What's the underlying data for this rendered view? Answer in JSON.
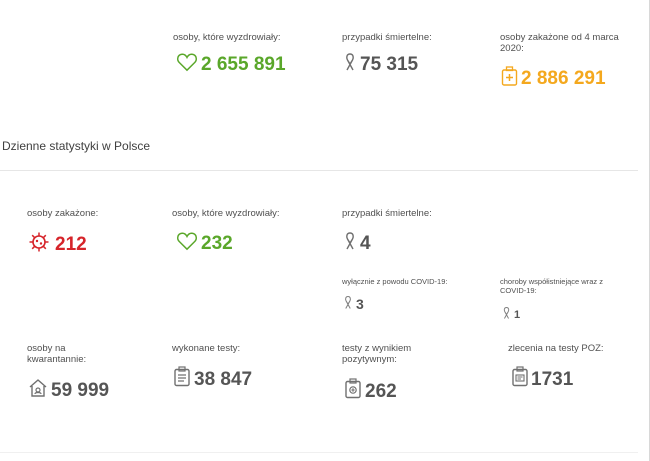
{
  "top": {
    "recovered": {
      "label": "osoby, które wyzdrowiały:",
      "value": "2 655 891",
      "icon": "heart-icon"
    },
    "deaths": {
      "label": "przypadki śmiertelne:",
      "value": "75 315",
      "icon": "ribbon-icon"
    },
    "infected_total": {
      "label": "osoby zakażone od 4 marca 2020:",
      "value": "2 886 291",
      "icon": "medical-kit-icon"
    }
  },
  "section": {
    "title": "Dzienne statystyki w Polsce"
  },
  "daily": {
    "infected": {
      "label": "osoby zakażone:",
      "value": "212",
      "icon": "virus-icon"
    },
    "recovered": {
      "label": "osoby, które wyzdrowiały:",
      "value": "232",
      "icon": "heart-icon"
    },
    "deaths": {
      "label": "przypadki śmiertelne:",
      "value": "4",
      "icon": "ribbon-icon"
    },
    "deaths_covid_only": {
      "label": "wyłącznie z powodu COVID-19:",
      "value": "3",
      "icon": "ribbon-icon"
    },
    "deaths_comorbid": {
      "label": "choroby współistniejące wraz z COVID-19:",
      "value": "1",
      "icon": "ribbon-icon"
    },
    "quarantine": {
      "label": "osoby na kwarantannie:",
      "value": "59 999",
      "icon": "house-icon"
    },
    "tests": {
      "label": "wykonane testy:",
      "value": "38 847",
      "icon": "clipboard-test-icon"
    },
    "tests_positive": {
      "label": "testy z wynikiem pozytywnym:",
      "value": "262",
      "icon": "test-positive-icon"
    },
    "poz_orders": {
      "label": "zlecenia na testy POZ:",
      "value": "1731",
      "icon": "test-order-icon"
    }
  },
  "colors": {
    "green": "#5aa72a",
    "orange": "#f4a81e",
    "red": "#d6242a",
    "gray": "#555555"
  }
}
